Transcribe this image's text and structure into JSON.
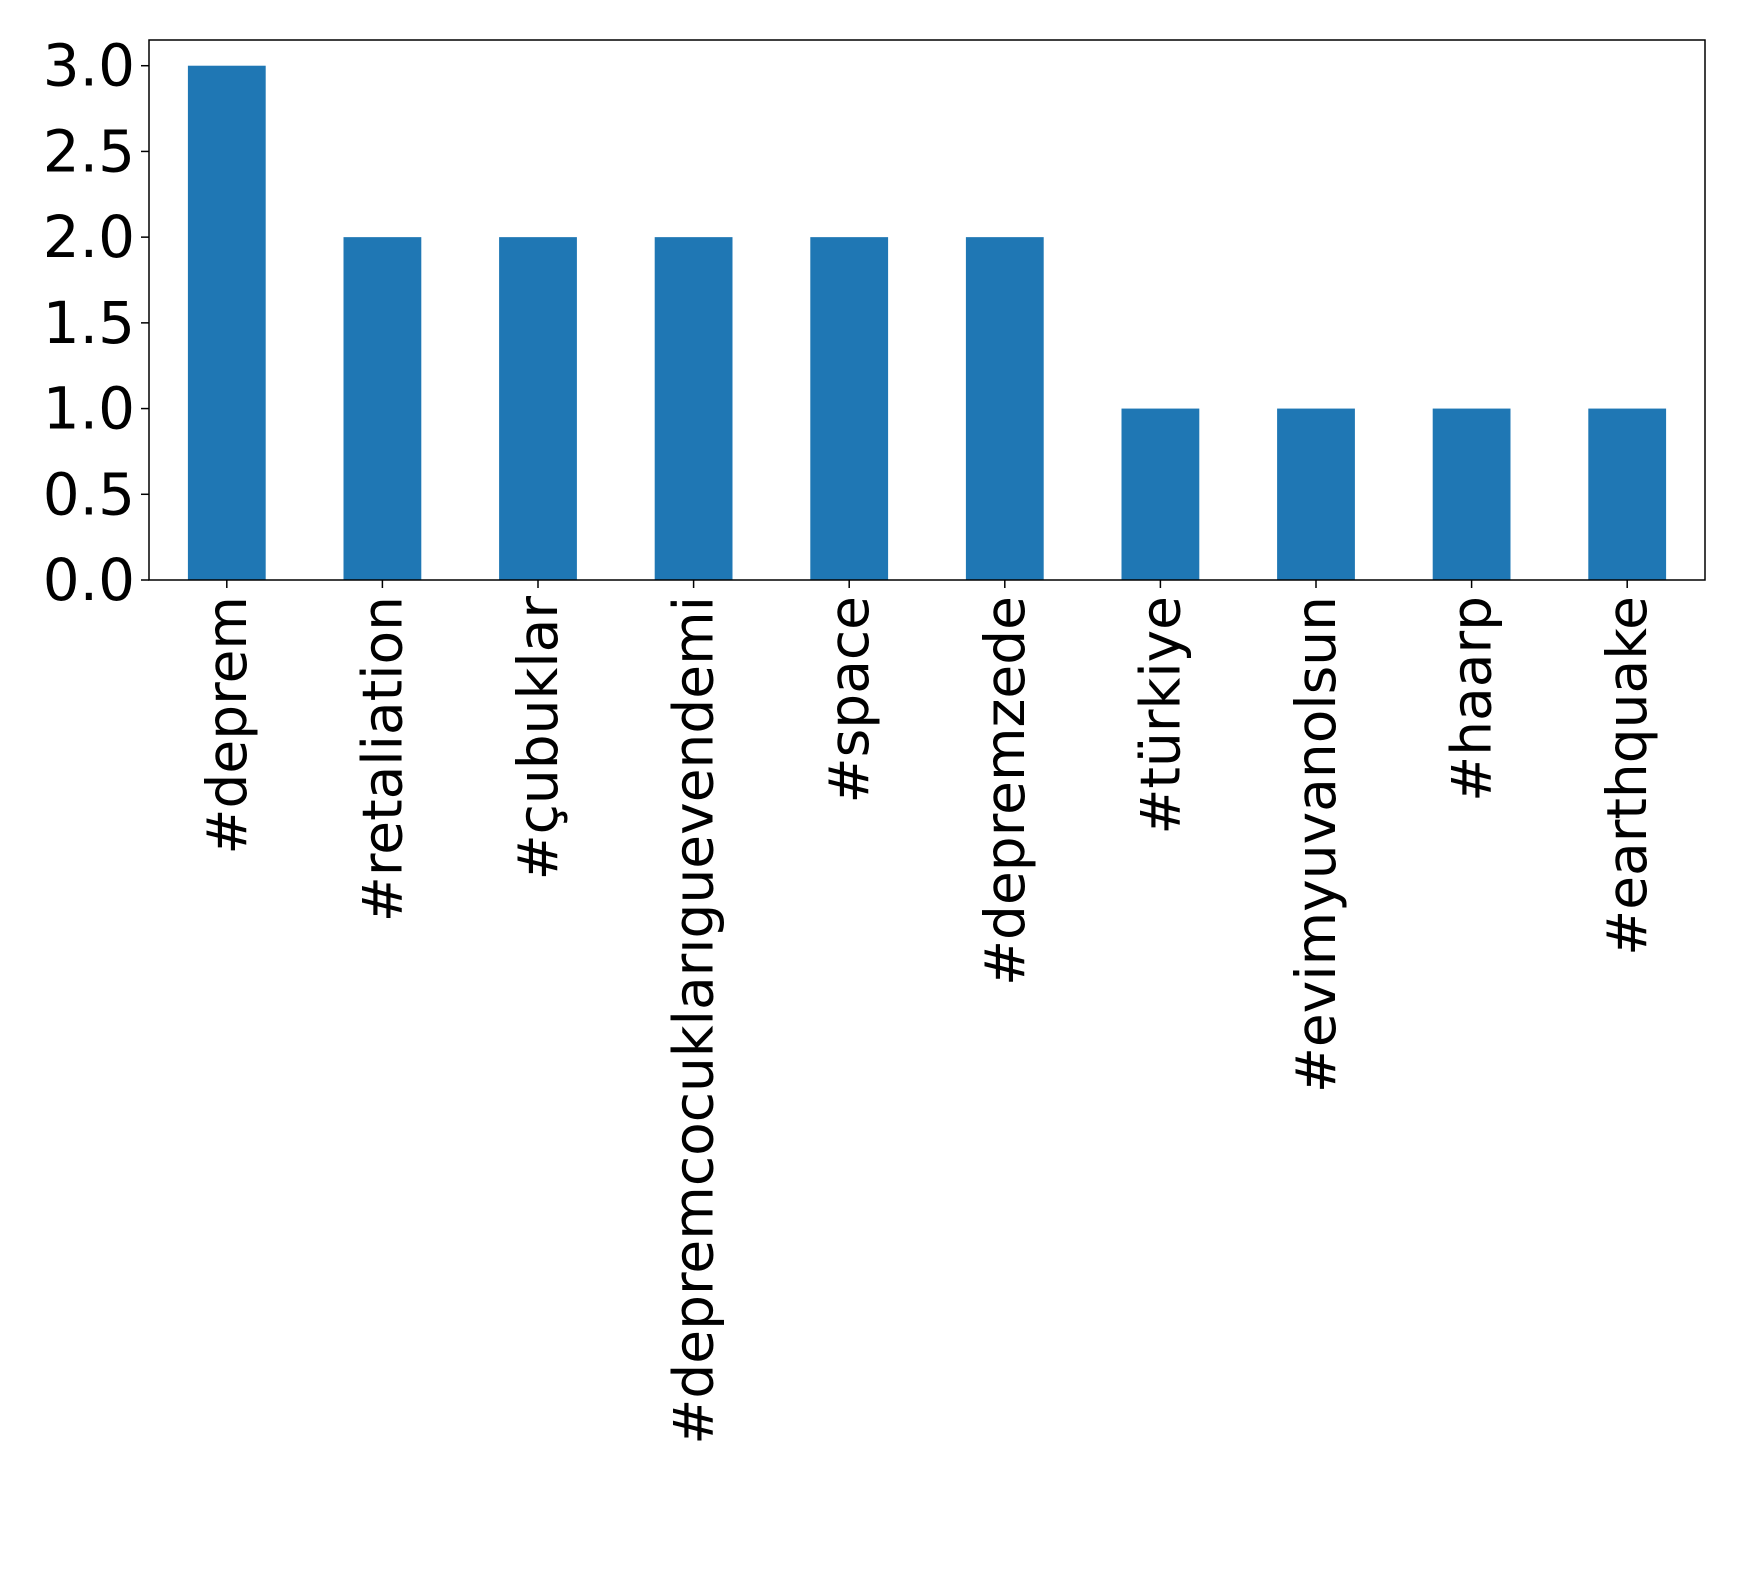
{
  "chart_data": {
    "type": "bar",
    "title": "",
    "xlabel": "",
    "ylabel": "",
    "categories": [
      "#deprem",
      "#retaliation",
      "#çubuklar",
      "#depremcocuklarıguevendemi",
      "#space",
      "#depremzede",
      "#türkiye",
      "#evimyuvanolsun",
      "#haarp",
      "#earthquake"
    ],
    "values": [
      3,
      2,
      2,
      2,
      2,
      2,
      1,
      1,
      1,
      1
    ],
    "ylim": [
      0,
      3.15
    ],
    "yticks": [
      "0.0",
      "0.5",
      "1.0",
      "1.5",
      "2.0",
      "2.5",
      "3.0"
    ],
    "grid": false,
    "legend": "none",
    "bar_color": "#1f77b4"
  }
}
